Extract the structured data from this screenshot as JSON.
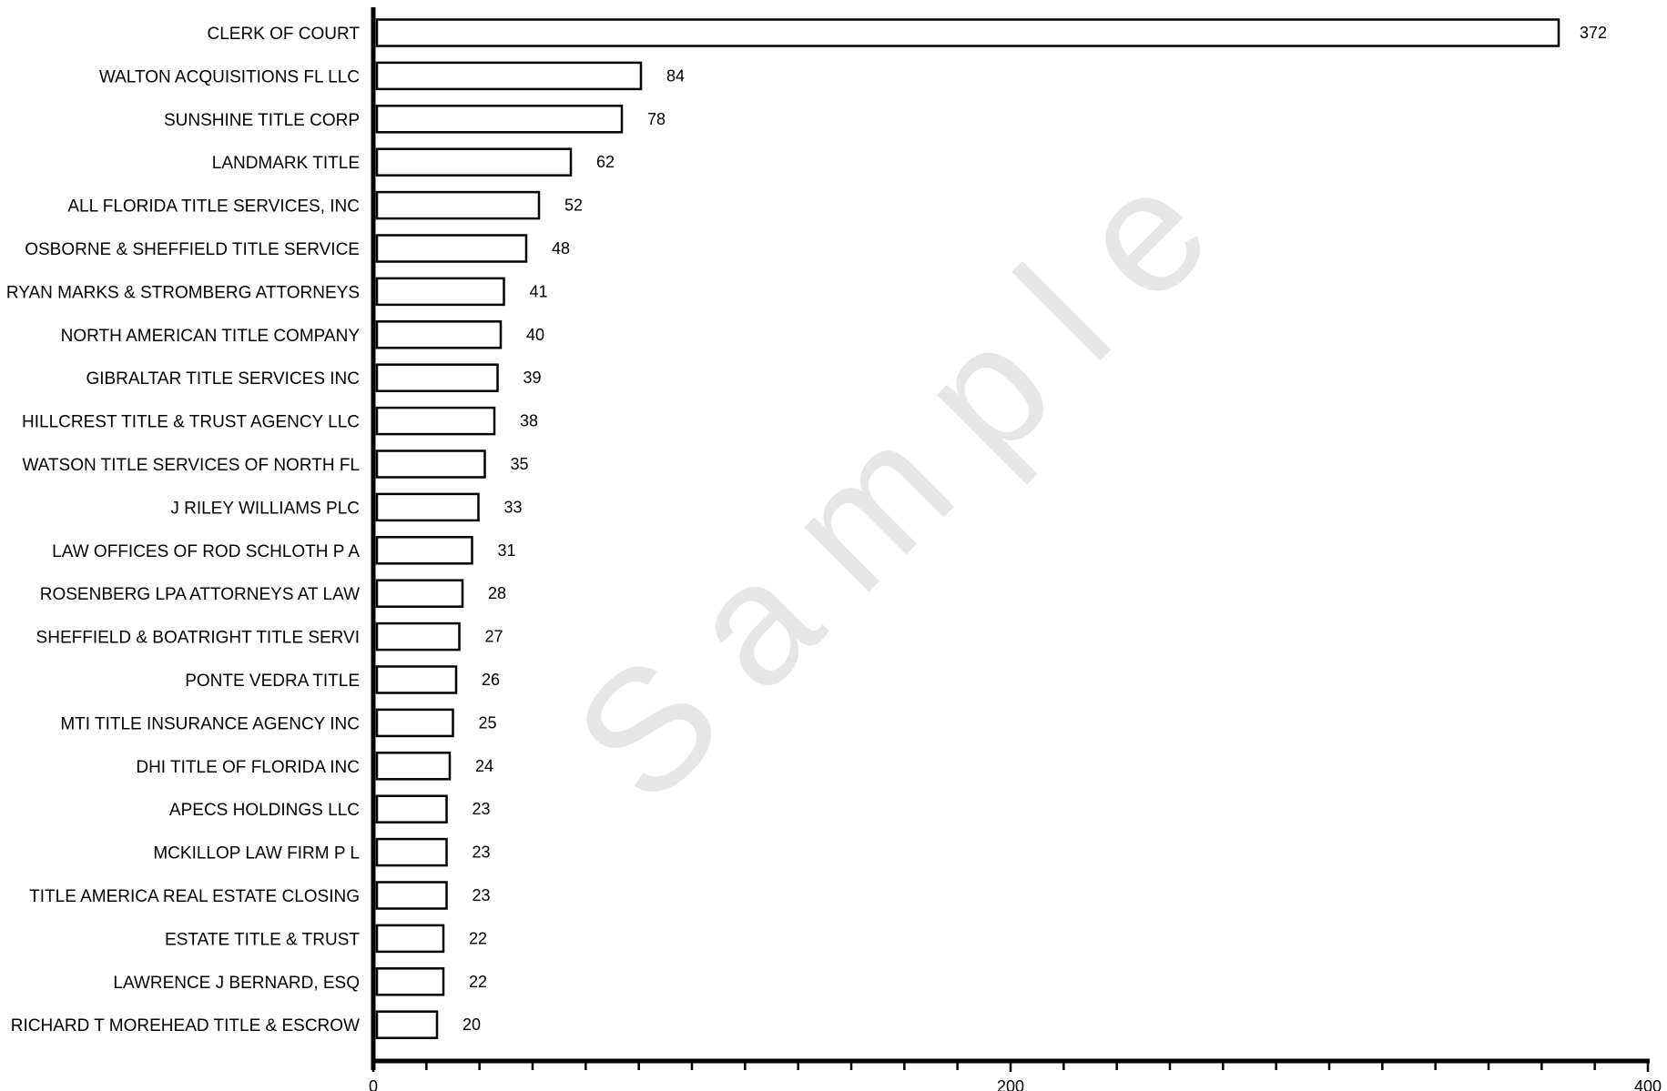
{
  "watermark_text": "Sample",
  "chart_data": {
    "type": "bar",
    "orientation": "horizontal",
    "title": "",
    "xlabel": "",
    "ylabel": "",
    "xlim": [
      0,
      400
    ],
    "x_tick_labels": [
      "0",
      "200",
      "400"
    ],
    "grid": false,
    "legend": "none",
    "bar_fill": "#ffffff",
    "bar_stroke": "#000000",
    "categories": [
      "CLERK OF COURT",
      "WALTON ACQUISITIONS FL LLC",
      "SUNSHINE TITLE CORP",
      "LANDMARK TITLE",
      "ALL FLORIDA TITLE SERVICES, INC",
      "OSBORNE & SHEFFIELD TITLE SERVICE",
      "RYAN MARKS & STROMBERG ATTORNEYS",
      "NORTH AMERICAN TITLE COMPANY",
      "GIBRALTAR TITLE SERVICES INC",
      "HILLCREST TITLE & TRUST AGENCY LLC",
      "WATSON TITLE SERVICES OF NORTH FL",
      "J RILEY WILLIAMS PLC",
      "LAW OFFICES OF ROD SCHLOTH P A",
      "ROSENBERG LPA ATTORNEYS AT LAW",
      "SHEFFIELD & BOATRIGHT TITLE SERVI",
      "PONTE VEDRA TITLE",
      "MTI TITLE INSURANCE AGENCY INC",
      "DHI TITLE OF FLORIDA INC",
      "APECS HOLDINGS LLC",
      "MCKILLOP LAW FIRM P L",
      "TITLE AMERICA REAL ESTATE CLOSING",
      "ESTATE TITLE & TRUST",
      "LAWRENCE J BERNARD, ESQ",
      "RICHARD T MOREHEAD TITLE & ESCROW"
    ],
    "values": [
      372,
      84,
      78,
      62,
      52,
      48,
      41,
      40,
      39,
      38,
      35,
      33,
      31,
      28,
      27,
      26,
      25,
      24,
      23,
      23,
      23,
      22,
      22,
      20
    ],
    "value_labels": [
      "372",
      "84",
      "78",
      "62",
      "52",
      "48",
      "41",
      "40",
      "39",
      "38",
      "35",
      "33",
      "31",
      "28",
      "27",
      "26",
      "25",
      "24",
      "23",
      "23",
      "23",
      "22",
      "22",
      "20"
    ]
  }
}
